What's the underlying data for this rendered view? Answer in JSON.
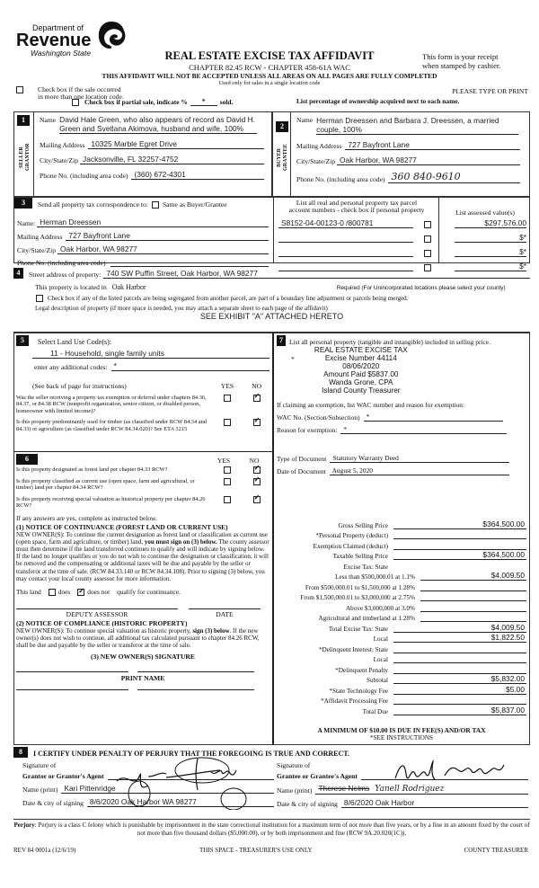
{
  "header": {
    "dept_line1": "Department of",
    "dept_line2": "Revenue",
    "dept_line3": "Washington State",
    "title": "REAL ESTATE EXCISE TAX AFFIDAVIT",
    "subtitle": "CHAPTER 82.45 RCW - CHAPTER 458-61A WAC",
    "receipt1": "This form is your receipt",
    "receipt2": "when stamped by cashier.",
    "warning": "THIS AFFIDAVIT WILL NOT BE ACCEPTED UNLESS ALL AREAS ON ALL PAGES ARE FULLY COMPLETED",
    "used_only": "Used only for sales in a single location code",
    "multi_loc1": "Check box if the sale occurred",
    "multi_loc2": "in more than one location code.",
    "please": "PLEASE TYPE OR PRINT",
    "partial_a": "Check box if partial sale, indicate %",
    "partial_val": "*",
    "partial_b": "sold.",
    "ownership": "List percentage of ownership acquired next to each name."
  },
  "s1": {
    "num": "1",
    "side": "SELLER GRANTOR",
    "name_label": "Name",
    "name": "David Hale Green, who also appears of record as David H. Green and Svetlana Akimova, husband and wife, 100%",
    "mail_label": "Mailing Address",
    "mail": "10325 Marble Egret Drive",
    "city_label": "City/State/Zip",
    "city": "Jacksonville, FL  32257-4752",
    "phone_label": "Phone No. (including area code)",
    "phone": "(360) 672-4301"
  },
  "s2": {
    "num": "2",
    "side": "BUYER GRANTEE",
    "name_label": "Name",
    "name": "Herman Dreessen and Barbara J. Dreessen, a married couple, 100%",
    "mail_label": "Mailing Address",
    "mail": "727 Bayfront Lane",
    "city_label": "City/State/Zip",
    "city": "Oak Harbor, WA  98277",
    "phone_label": "Phone No. (including area code)",
    "phone": "360 840-9610"
  },
  "s3": {
    "num": "3",
    "send": "Send all property tax correspondence to:",
    "same": "Same as Buyer/Grantee",
    "name_label": "Name:",
    "name": "Herman Dreessen",
    "mail_label": "Mailing Address",
    "mail": "727 Bayfront Lane",
    "city_label": "City/State/Zip",
    "city": "Oak Harbor, WA  98277",
    "phone_label": "Phone No. (including area code)",
    "phone": "",
    "parcel_head1": "List all real and personal property tax parcel",
    "parcel_head2": "account numbers - check box if personal property",
    "assessed_head": "List assessed value(s)",
    "parcels": [
      {
        "num": "S8152-04-00123-0 /800781",
        "value": "$297,576.00"
      },
      {
        "num": "",
        "value": "$*"
      },
      {
        "num": "",
        "value": "$*"
      },
      {
        "num": "",
        "value": "$*"
      }
    ]
  },
  "s4": {
    "num": "4",
    "street_label": "Street address of property:",
    "street": "740 SW Puffin Street, Oak Harbor, WA 98277",
    "located_label": "This property is located in",
    "located": "Oak Harbor",
    "required": "Required (For Unincorporated locations please select your county)",
    "segregated": "Check box if any of the listed parcels are being segregated from another parcel, are part of a boundary line adjustment or parcels being merged.",
    "legal_label": "Legal description of property (if more space is needed, you may attach a separate sheet to each page of the affidavit)",
    "legal": "SEE EXHIBIT \"A\" ATTACHED HERETO"
  },
  "s5": {
    "num": "5",
    "select": "Select Land Use Code(s):",
    "code": "11 - Household, single family units",
    "additional_label": "enter any additional codes:",
    "additional": "*",
    "see_back": "(See back of page for instructions)",
    "yes": "YES",
    "no": "NO",
    "questions": [
      {
        "text": "Was the seller receiving a property tax exemption or deferral under chapters 84.36, 84.37, or 84.38 RCW (nonprofit organization, senior citizen, or disabled person, homeowner with limited income)?",
        "answer": "no"
      },
      {
        "text": "Is this property predominantly used for timber (as classified under RCW 84.34 and 84.33) or agriculture (as classified under RCW 84.34.020)? See ETA 3215",
        "answer": "no"
      }
    ]
  },
  "s6": {
    "num": "6",
    "yes": "YES",
    "no": "NO",
    "questions": [
      {
        "text": "Is this property designated as forest land per chapter 84.33 RCW?",
        "answer": "no"
      },
      {
        "text": "Is this property classified as current use (open space, farm and agricultural, or timber) land per chapter 84.34 RCW?",
        "answer": "no"
      },
      {
        "text": "Is this property receiving special valuation as historical property per chapter 84.26 RCW?",
        "answer": "no"
      }
    ],
    "if_yes": "If any answers are yes, complete as instructed below.",
    "n1_title": "(1) NOTICE OF CONTINUANCE (FOREST LAND OR CURRENT USE)",
    "n1_a": "NEW OWNER(S): To continue the current designation as forest land or classification as current use (open space, farm and agriculture, or timber) land, ",
    "n1_bold": "you must sign on (3) below.",
    "n1_b": " The county assessor must then determine if the land transferred continues to qualify and will indicate by signing below. If the land no longer qualifies or you do not wish to continue the designation or classification, it will be removed and the compensating or additional taxes will be due and payable by the seller or transferor at the time of sale. (RCW 84.33.140 or RCW 84.34.108). Prior to signing (3) below, you may contact your local county assessor for more information.",
    "this_land": "This land",
    "does": "does",
    "does_not": "does not",
    "qualify": "qualify for continuance.",
    "continuance": "does_not",
    "deputy": "DEPUTY ASSESSOR",
    "date": "DATE",
    "n2_title": "(2) NOTICE OF COMPLIANCE (HISTORIC PROPERTY)",
    "n2_a": "NEW OWNER(S): To continue special valuation as historic property, ",
    "n2_bold": "sign (3) below",
    "n2_b": ". If the new owner(s) does not wish to continue, all additional tax calculated pursuant to chapter 84.26 RCW, shall be due and payable by the seller or transferor at the time of sale.",
    "n3_title": "(3) NEW OWNER(S) SIGNATURE",
    "print_name": "PRINT NAME"
  },
  "s7": {
    "num": "7",
    "personal": "List all personal property (tangible and intangible) included in selling price.",
    "personal_val": "*",
    "stamp": [
      "REAL ESTATE EXCISE TAX",
      "Excise Number 44114",
      "08/06/2020",
      "Amount Paid $5837.00",
      "Wanda Grone, CPA",
      "Island County Treasurer"
    ],
    "exempt_intro": "If claiming an exemption, list WAC number and reason for exemption:",
    "wac_label": "WAC No. (Section/Subsection)",
    "wac": "*",
    "reason_label": "Reason for exemption:",
    "reason": "*",
    "doc_type_label": "Type of Document",
    "doc_type": "Statutory Warranty Deed",
    "doc_date_label": "Date of Document",
    "doc_date": "August 5, 2020",
    "tax_rows": [
      {
        "label": "Gross Selling Price",
        "value": "$364,500.00",
        "indent": false
      },
      {
        "label": "*Personal Property (deduct)",
        "value": "",
        "indent": false
      },
      {
        "label": "Exemption Claimed (deduct)",
        "value": "",
        "indent": false
      },
      {
        "label": "Taxable Selling Price",
        "value": "$364,500.00",
        "indent": false
      },
      {
        "label": "Excise Tax:  State",
        "value": null,
        "indent": false
      },
      {
        "label": "Less than $500,000.01 at 1.1%",
        "value": "$4,009.50",
        "indent": true
      },
      {
        "label": "From $500,000.01 to $1,500,000 at 1.28%",
        "value": "",
        "indent": true
      },
      {
        "label": "From $1,500,000.01 to $3,000,000 at 2.75%",
        "value": "",
        "indent": true
      },
      {
        "label": "Above $3,000,000 at 3.0%",
        "value": "",
        "indent": true
      },
      {
        "label": "Agricultural and timberland at 1.28%",
        "value": "",
        "indent": true
      },
      {
        "label": "Total Excise Tax: State",
        "value": "$4,009.50",
        "indent": false
      },
      {
        "label": "Local",
        "value": "$1,822.50",
        "indent": false
      },
      {
        "label": "*Delinquent Interest:  State",
        "value": "",
        "indent": false
      },
      {
        "label": "Local",
        "value": "",
        "indent": false
      },
      {
        "label": "*Delinquent Penalty",
        "value": "",
        "indent": false
      },
      {
        "label": "Subtotal",
        "value": "$5,832.00",
        "indent": false
      },
      {
        "label": "*State Technology Fee",
        "value": "$5.00",
        "indent": false
      },
      {
        "label": "*Affidavit Processing Fee",
        "value": "",
        "indent": false
      },
      {
        "label": "Total Due",
        "value": "$5,837.00",
        "indent": false
      }
    ],
    "minimum": "A MINIMUM OF $10.00 IS DUE IN FEE(S) AND/OR TAX",
    "see_instr": "*SEE INSTRUCTIONS"
  },
  "s8": {
    "num": "8",
    "certify": "I CERTIFY UNDER PENALTY OF PERJURY THAT THE FOREGOING IS TRUE AND CORRECT.",
    "sig_of": "Signature of",
    "grantor_agent": "Grantor or Grantor's Agent",
    "grantee_agent": "Grantee or Grantee's Agent",
    "name_print": "Name (print)",
    "grantor_name": "Kari Pittenridge",
    "grantee_name_crossed": "Therese Nelms",
    "grantee_name_hand": "Yanell Rodriguez",
    "date_city": "Date & city of signing",
    "grantor_date": "8/6/2020 Oak Harbor WA 98277",
    "grantee_date": "8/6/2020 Oak Harbor"
  },
  "footer": {
    "perjury_label": "Perjury",
    "perjury": ": Perjury is a class C felony which is punishable by imprisonment in the state correctional institution for a maximum term of not more than five years, or by a fine in an amount fixed by the court of not more than five thousand dollars ($5,000.00), or by both imprisonment and fine (RCW 9A.20.020(1C)).",
    "rev": "REV 84 0001a (12/6/19)",
    "space": "THIS SPACE - TREASURER'S USE ONLY",
    "county": "COUNTY TREASURER"
  }
}
